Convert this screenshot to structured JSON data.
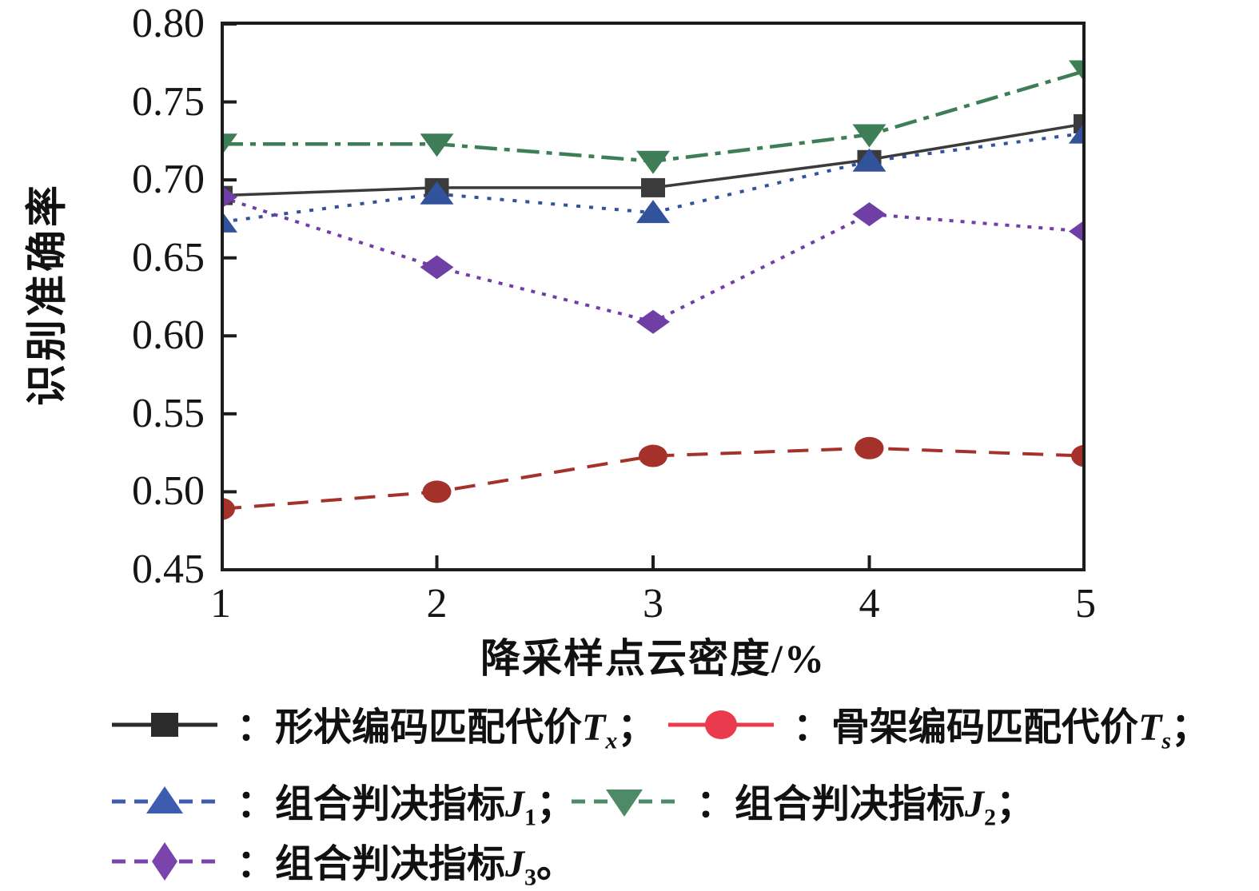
{
  "figure": {
    "background": "#ffffff",
    "frame_color": "#1c1c1c",
    "text_color": "#111111"
  },
  "axes": {
    "y_label": "识别准确率",
    "x_label": "降采样点云密度/%",
    "y_ticks": [
      "0.80",
      "0.75",
      "0.70",
      "0.65",
      "0.60",
      "0.55",
      "0.50",
      "0.45"
    ],
    "x_ticks": [
      "1",
      "2",
      "3",
      "4",
      "5"
    ]
  },
  "chart_data": {
    "type": "line",
    "title": "",
    "xlabel": "降采样点云密度/%",
    "ylabel": "识别准确率",
    "x": [
      1,
      2,
      3,
      4,
      5
    ],
    "xlim": [
      1,
      5
    ],
    "ylim": [
      0.45,
      0.8
    ],
    "y_tick_step": 0.05,
    "grid": false,
    "legend_position": "below",
    "series": [
      {
        "name": "形状编码匹配代价Tx",
        "marker": "square",
        "line": "solid",
        "color": "#3b3b3b",
        "values": [
          0.69,
          0.695,
          0.695,
          0.713,
          0.736
        ]
      },
      {
        "name": "骨架编码匹配代价Ts",
        "marker": "circle",
        "line": "dashed",
        "color": "#a5312b",
        "values": [
          0.489,
          0.5,
          0.523,
          0.528,
          0.523
        ]
      },
      {
        "name": "组合判决指标J1",
        "marker": "triangle-up",
        "line": "short-dash",
        "color": "#32529b",
        "values": [
          0.673,
          0.691,
          0.679,
          0.712,
          0.73
        ]
      },
      {
        "name": "组合判决指标J2",
        "marker": "triangle-down",
        "line": "dash-dot",
        "color": "#3e7e56",
        "values": [
          0.723,
          0.723,
          0.712,
          0.729,
          0.77
        ]
      },
      {
        "name": "组合判决指标J3",
        "marker": "diamond",
        "line": "dotted",
        "color": "#6f3fa5",
        "values": [
          0.689,
          0.644,
          0.609,
          0.678,
          0.667
        ]
      }
    ]
  },
  "legend": {
    "items": [
      {
        "prefix": "：",
        "text": "形状编码匹配代价",
        "var": "T",
        "sub": "x",
        "suffix": "；",
        "marker": "square",
        "line": "solid",
        "color": "#2b2b2b"
      },
      {
        "prefix": "：",
        "text": "骨架编码匹配代价",
        "var": "T",
        "sub": "s",
        "suffix": "；",
        "marker": "circle",
        "line": "solid",
        "color": "#ea3b4e"
      },
      {
        "prefix": "：",
        "text": "组合判决指标",
        "var": "J",
        "sub": "1",
        "suffix": "；",
        "marker": "triangle-up",
        "line": "dashed",
        "color": "#3d5cb0"
      },
      {
        "prefix": "：",
        "text": "组合判决指标",
        "var": "J",
        "sub": "2",
        "suffix": "；",
        "marker": "triangle-down",
        "line": "dashed",
        "color": "#4d8a65"
      },
      {
        "prefix": "：",
        "text": "组合判决指标",
        "var": "J",
        "sub": "3",
        "suffix": "。",
        "marker": "diamond",
        "line": "dashed",
        "color": "#7a44ad"
      }
    ]
  }
}
